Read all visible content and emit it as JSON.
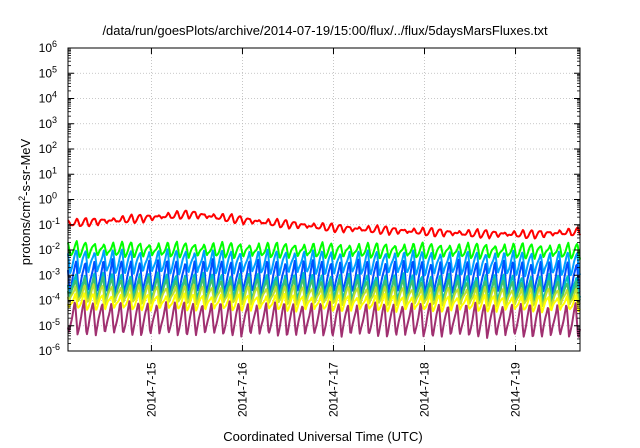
{
  "chart_data": {
    "type": "line",
    "title": "/data/run/goesPlots/archive/2014-07-19/15:00/flux/../flux/5daysMarsFluxes.txt",
    "xlabel": "Coordinated Universal Time (UTC)",
    "ylabel_main": "protons/cm",
    "ylabel_sup": "2",
    "ylabel_rest": "-s-sr-MeV",
    "y_scale": "log",
    "ylim_exponent": [
      -6,
      6
    ],
    "xlim": [
      "2014-07-14 02:00",
      "2014-07-19 17:00"
    ],
    "grid": true,
    "y_ticks": [
      {
        "base": "10",
        "exp": "6",
        "value": 1000000.0
      },
      {
        "base": "10",
        "exp": "5",
        "value": 100000.0
      },
      {
        "base": "10",
        "exp": "4",
        "value": 10000.0
      },
      {
        "base": "10",
        "exp": "3",
        "value": 1000.0
      },
      {
        "base": "10",
        "exp": "2",
        "value": 100.0
      },
      {
        "base": "10",
        "exp": "1",
        "value": 10.0
      },
      {
        "base": "10",
        "exp": "0",
        "value": 1.0
      },
      {
        "base": "10",
        "exp": "-1",
        "value": 0.1
      },
      {
        "base": "10",
        "exp": "-2",
        "value": 0.01
      },
      {
        "base": "10",
        "exp": "-3",
        "value": 0.001
      },
      {
        "base": "10",
        "exp": "-4",
        "value": 0.0001
      },
      {
        "base": "10",
        "exp": "-5",
        "value": 1e-05
      },
      {
        "base": "10",
        "exp": "-6",
        "value": 1e-06
      }
    ],
    "x_ticks": [
      {
        "label": "2014-7-15",
        "date": "2014-07-15"
      },
      {
        "label": "2014-7-16",
        "date": "2014-07-16"
      },
      {
        "label": "2014-7-17",
        "date": "2014-07-17"
      },
      {
        "label": "2014-7-18",
        "date": "2014-07-18"
      },
      {
        "label": "2014-7-19",
        "date": "2014-07-19"
      }
    ],
    "sawtooth_period_hours": 2.4,
    "series": [
      {
        "color": "#ff0000",
        "trend": [
          [
            0,
            0.15
          ],
          [
            0.12,
            0.22
          ],
          [
            0.24,
            0.35
          ],
          [
            0.38,
            0.17
          ],
          [
            0.52,
            0.1
          ],
          [
            0.66,
            0.075
          ],
          [
            0.78,
            0.06
          ],
          [
            0.9,
            0.055
          ],
          [
            1.0,
            0.07
          ]
        ],
        "dip_decades": 0.25
      },
      {
        "color": "#00ff00",
        "trend": [
          [
            0,
            0.02
          ],
          [
            0.5,
            0.018
          ],
          [
            1.0,
            0.017
          ]
        ],
        "dip_decades": 0.55
      },
      {
        "color": "#00a0ff",
        "trend": [
          [
            0,
            0.01
          ],
          [
            0.5,
            0.009
          ],
          [
            1.0,
            0.008
          ]
        ],
        "dip_decades": 0.9
      },
      {
        "color": "#0050ff",
        "trend": [
          [
            0,
            0.004
          ],
          [
            0.5,
            0.0038
          ],
          [
            1.0,
            0.0035
          ]
        ],
        "dip_decades": 1.3
      },
      {
        "color": "#00c0c0",
        "trend": [
          [
            0,
            0.0012
          ],
          [
            0.5,
            0.0011
          ],
          [
            1.0,
            0.001
          ]
        ],
        "dip_decades": 1.0
      },
      {
        "color": "#40c070",
        "trend": [
          [
            0,
            0.0008
          ],
          [
            0.5,
            0.0007
          ],
          [
            1.0,
            0.0006
          ]
        ],
        "dip_decades": 0.9
      },
      {
        "color": "#c0e030",
        "trend": [
          [
            0,
            0.0004
          ],
          [
            0.5,
            0.00035
          ],
          [
            1.0,
            0.0003
          ]
        ],
        "dip_decades": 0.7
      },
      {
        "color": "#ffff00",
        "trend": [
          [
            0,
            0.00018
          ],
          [
            0.5,
            0.00016
          ],
          [
            1.0,
            0.00015
          ]
        ],
        "dip_decades": 0.6
      },
      {
        "color": "#a03070",
        "trend": [
          [
            0,
            9e-05
          ],
          [
            0.5,
            8e-05
          ],
          [
            1.0,
            7e-05
          ]
        ],
        "dip_decades": 1.3
      }
    ]
  }
}
